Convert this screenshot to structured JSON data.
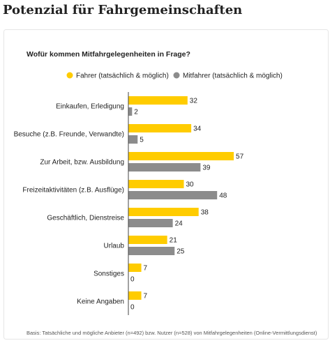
{
  "chart_data": {
    "type": "bar",
    "orientation": "horizontal",
    "title": "Potenzial für Fahrgemeinschaften",
    "subtitle": "Wofür kommen Mitfahrgelegenheiten in Frage?",
    "categories": [
      "Einkaufen, Erledigung",
      "Besuche (z.B. Freunde, Verwandte)",
      "Zur Arbeit, bzw. Ausbildung",
      "Freizeitaktivitäten (z.B. Ausflüge)",
      "Geschäftlich, Dienstreise",
      "Urlaub",
      "Sonstiges",
      "Keine Angaben"
    ],
    "series": [
      {
        "name": "Fahrer (tatsächlich & möglich)",
        "color": "#ffcc00",
        "values": [
          32,
          34,
          57,
          30,
          38,
          21,
          7,
          7
        ]
      },
      {
        "name": "Mitfahrer (tatsächlich & möglich)",
        "color": "#8c8c8c",
        "values": [
          2,
          5,
          39,
          48,
          24,
          25,
          0,
          0
        ]
      }
    ],
    "note": "Basis: Tatsächliche und mögliche Anbieter (n=492) bzw. Nutzer (n=528) von Mitfahrgelegenheiten (Online-Vermittlungsdienst)"
  }
}
